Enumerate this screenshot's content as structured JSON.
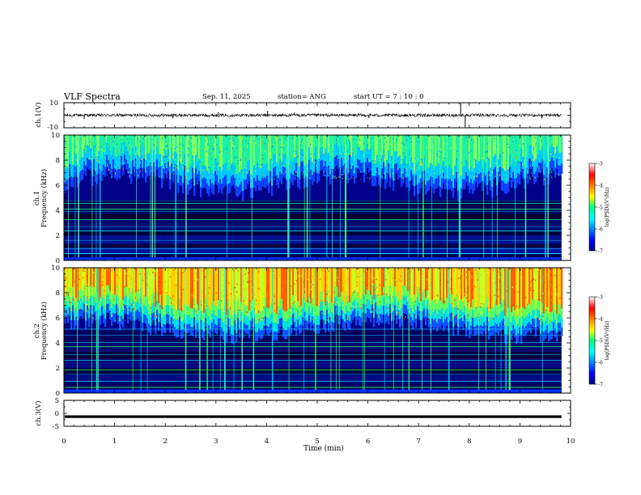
{
  "header": {
    "title": "VLF Spectra",
    "date": "Sep. 11, 2025",
    "station": "station= ANG",
    "start_ut": "start  UT  =   7 : 10 : 0"
  },
  "chart_data": [
    {
      "type": "line",
      "panel": "ch1-waveform",
      "ylabel": "ch.1(V)",
      "ylim": [
        -10,
        10
      ],
      "yticks": [
        "10",
        "-10"
      ],
      "description_values": {
        "baseline": 0,
        "noise_amplitude": 1.2
      }
    },
    {
      "type": "heatmap",
      "panel": "ch1-spectrogram",
      "ylabel_line1": "ch.1",
      "ylabel_line2": "Frequency (kHz)",
      "ylim": [
        0,
        10
      ],
      "yticks": [
        "0",
        "2",
        "4",
        "6",
        "8",
        "10"
      ],
      "colorbar": {
        "label": "log(PSD)(V²/Hz)",
        "range": [
          -7,
          -3
        ],
        "ticks": [
          "-3",
          "-4",
          "-5",
          "-6",
          "-7"
        ]
      }
    },
    {
      "type": "heatmap",
      "panel": "ch2-spectrogram",
      "ylabel_line1": "ch.2",
      "ylabel_line2": "Frequency (kHz)",
      "ylim": [
        0,
        10
      ],
      "yticks": [
        "0",
        "2",
        "4",
        "6",
        "8",
        "10"
      ],
      "colorbar": {
        "label": "log(PSD)(V²/Hz)",
        "range": [
          -7,
          -3
        ],
        "ticks": [
          "-3",
          "-4",
          "-5",
          "-6",
          "-7"
        ]
      }
    },
    {
      "type": "line",
      "panel": "ch3-waveform",
      "ylabel": "ch.3(V)",
      "ylim": [
        -5,
        5
      ],
      "yticks": [
        "5",
        "0",
        "-5"
      ],
      "description_values": {
        "baseline": -1.3
      }
    }
  ],
  "xaxis": {
    "label": "Time (min)",
    "range": [
      0,
      10
    ],
    "ticks": [
      "0",
      "1",
      "2",
      "3",
      "4",
      "5",
      "6",
      "7",
      "8",
      "9",
      "10"
    ],
    "data_end": 9.82
  }
}
